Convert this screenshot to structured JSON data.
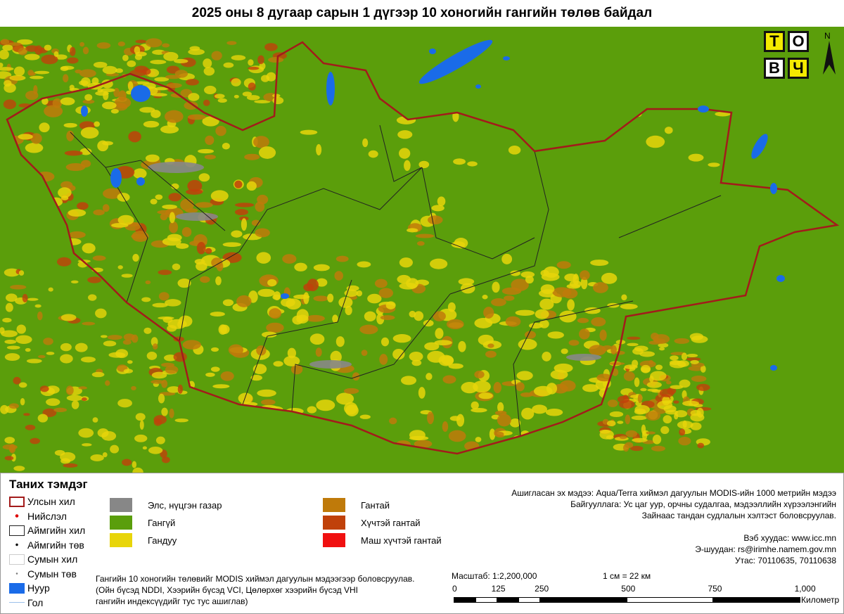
{
  "title": "2025 оны 8 дугаар сарын 1 дүгээр 10 хоногийн гангийн төлөв байдал",
  "logo": {
    "letters": [
      "Т",
      "О",
      "В",
      "Ч"
    ],
    "north": "N"
  },
  "colors": {
    "background": "#5b9e0b",
    "border": "#a31b1b",
    "lake": "#1a6be8",
    "river": "#8ab4e0"
  },
  "legend": {
    "title": "Таних тэмдэг",
    "symbols": [
      {
        "label": "Улсын хил",
        "icon": "red-outline-box"
      },
      {
        "label": "Нийслэл",
        "icon": "red-dot"
      },
      {
        "label": "Аймгийн хил",
        "icon": "black-outline-box"
      },
      {
        "label": "Аймгийн төв",
        "icon": "black-dot"
      },
      {
        "label": "Сумын хил",
        "icon": "gray-outline-box"
      },
      {
        "label": "Сумын төв",
        "icon": "gray-dot"
      },
      {
        "label": "Нуур",
        "icon": "blue-box"
      },
      {
        "label": "Гол",
        "icon": "blue-line"
      }
    ],
    "classes": [
      {
        "label": "Элс, нүцгэн газар",
        "color": "#878787"
      },
      {
        "label": "Гангүй",
        "color": "#5a9e0c"
      },
      {
        "label": "Гандуу",
        "color": "#e8d50a"
      },
      {
        "label": "Гантай",
        "color": "#bf7a0a"
      },
      {
        "label": "Хүчтэй гантай",
        "color": "#c0410a"
      },
      {
        "label": "Маш хүчтэй гантай",
        "color": "#f01010"
      }
    ],
    "note": [
      "Гангийн 10 хоногийн төлөвийг MODIS хиймэл дагуулын мэдээгээр боловсруулав.",
      "(Ойн бүсэд NDDI, Хээрийн бүсэд VCI, Цөлөрхөг хээрийн бүсэд VHI",
      "гангийн индексүүдийг тус тус ашиглав)"
    ]
  },
  "source": [
    "Ашигласан эх мэдээ: Aqua/Terra хиймэл дагуулын MODIS-ийн 1000 метрийн мэдээ",
    "Байгууллага: Ус цаг уур, орчны судалгаа, мэдээллийн хүрээлэнгийн",
    "Зайнаас тандан судлалын хэлтэст боловсруулав."
  ],
  "contact": [
    "Вэб хуудас: www.icc.mn",
    "Э-шуудан: rs@irimhe.namem.gov.mn",
    "Утас: 70110635, 70110638"
  ],
  "scale": {
    "ratio": "Масштаб: 1:2,200,000",
    "equivalence": "1 см = 22 км",
    "ticks": [
      "0",
      "125",
      "250",
      "500",
      "750",
      "1,000"
    ],
    "unit": "Километр"
  }
}
